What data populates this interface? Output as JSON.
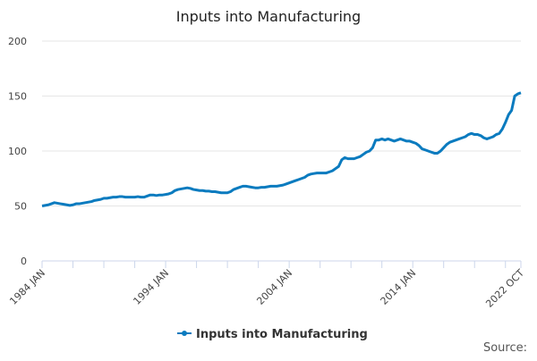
{
  "chart_data": {
    "type": "line",
    "title": "Inputs into Manufacturing",
    "categories": [
      "1984 JAN",
      null,
      null,
      null,
      null,
      null,
      null,
      null,
      null,
      null,
      null,
      null,
      null,
      null,
      null,
      null,
      null,
      null,
      null,
      null,
      null,
      null,
      null,
      null,
      null,
      null,
      null,
      null,
      null,
      null,
      null,
      null,
      null,
      null,
      null,
      null,
      null,
      null,
      null,
      null,
      "1994 JAN",
      null,
      null,
      null,
      null,
      null,
      null,
      null,
      null,
      null,
      null,
      null,
      null,
      null,
      null,
      null,
      null,
      null,
      null,
      null,
      null,
      null,
      null,
      null,
      null,
      null,
      null,
      null,
      null,
      null,
      null,
      null,
      null,
      null,
      null,
      null,
      null,
      null,
      null,
      null,
      "2004 JAN",
      null,
      null,
      null,
      null,
      null,
      null,
      null,
      null,
      null,
      null,
      null,
      null,
      null,
      null,
      null,
      null,
      null,
      null,
      null,
      null,
      null,
      null,
      null,
      null,
      null,
      null,
      null,
      null,
      null,
      null,
      null,
      null,
      null,
      null,
      null,
      null,
      null,
      null,
      null,
      "2014 JAN",
      null,
      null,
      null,
      null,
      null,
      null,
      null,
      null,
      null,
      null,
      null,
      null,
      null,
      null,
      null,
      null,
      null,
      null,
      null,
      null,
      null,
      null,
      null,
      null,
      null,
      null,
      null,
      null,
      null,
      null,
      null,
      null,
      null,
      null,
      "2022 OCT"
    ],
    "series": [
      {
        "name": "Inputs into Manufacturing",
        "color": "#0b7bbf",
        "values": [
          50,
          50.5,
          51,
          52,
          53,
          52.5,
          52,
          51.5,
          51,
          50.5,
          51,
          52,
          52,
          52.5,
          53,
          53.5,
          54,
          55,
          55.5,
          56,
          57,
          57,
          57.5,
          58,
          58,
          58.5,
          58.5,
          58,
          58,
          58,
          58,
          58.5,
          58,
          58,
          59,
          60,
          60,
          59.5,
          60,
          60,
          60.5,
          61,
          62,
          64,
          65,
          65.5,
          66,
          66.5,
          66,
          65,
          64.5,
          64,
          64,
          63.5,
          63.5,
          63,
          63,
          62.5,
          62,
          62,
          62,
          63,
          65,
          66,
          67,
          68,
          68,
          67.5,
          67,
          66.5,
          66.5,
          67,
          67,
          67.5,
          68,
          68,
          68,
          68.5,
          69,
          70,
          71,
          72,
          73,
          74,
          75,
          76,
          78,
          79,
          79.5,
          80,
          80,
          80,
          80,
          81,
          82,
          84,
          86,
          92,
          94,
          93,
          93,
          93,
          94,
          95,
          97,
          99,
          100,
          103,
          110,
          110,
          111,
          110,
          111,
          110,
          109,
          110,
          111,
          110,
          109,
          109,
          108,
          107,
          105,
          102,
          101,
          100,
          99,
          98,
          98,
          100,
          103,
          106,
          108,
          109,
          110,
          111,
          112,
          113,
          115,
          116,
          115,
          115,
          114,
          112,
          111,
          112,
          113,
          115,
          116,
          120,
          126,
          133,
          137,
          150,
          152,
          153
        ]
      }
    ],
    "ylim": [
      0,
      200
    ],
    "yticks": [
      0,
      50,
      100,
      150,
      200
    ],
    "grid": true,
    "source": "Source:"
  }
}
